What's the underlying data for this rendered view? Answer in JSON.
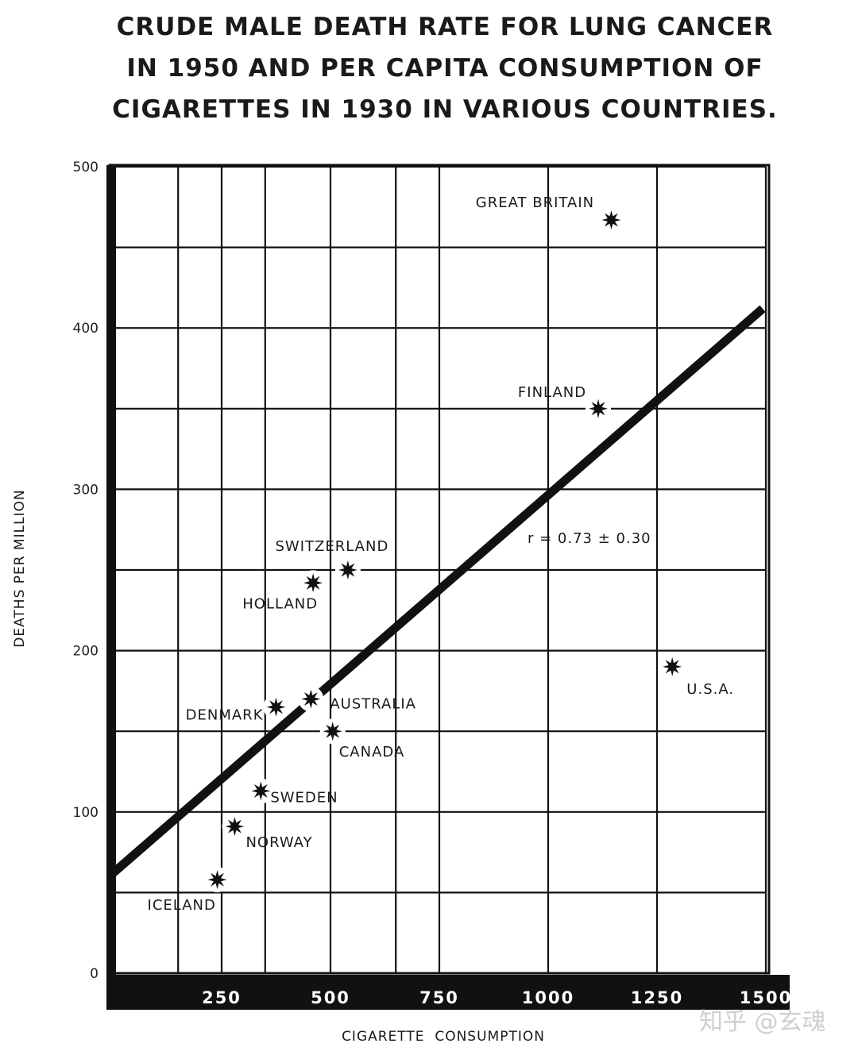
{
  "chart_data": {
    "type": "scatter",
    "title_lines": [
      "CRUDE MALE DEATH RATE FOR LUNG CANCER",
      "IN 1950 AND PER CAPITA CONSUMPTION OF",
      "CIGARETTES IN 1930 IN VARIOUS COUNTRIES."
    ],
    "xlabel": "CIGARETTE  CONSUMPTION",
    "ylabel": "DEATHS PER MILLION",
    "xlim": [
      0,
      1500
    ],
    "ylim": [
      0,
      500
    ],
    "x_ticks": [
      "250",
      "500",
      "750",
      "1000",
      "1250",
      "1500"
    ],
    "y_ticks": [
      "0",
      "100",
      "200",
      "300",
      "400",
      "500"
    ],
    "grid": true,
    "points": [
      {
        "label": "ICELAND",
        "x": 240,
        "y": 58
      },
      {
        "label": "NORWAY",
        "x": 280,
        "y": 91
      },
      {
        "label": "SWEDEN",
        "x": 340,
        "y": 113
      },
      {
        "label": "DENMARK",
        "x": 375,
        "y": 165
      },
      {
        "label": "AUSTRALIA",
        "x": 455,
        "y": 170
      },
      {
        "label": "CANADA",
        "x": 505,
        "y": 150
      },
      {
        "label": "HOLLAND",
        "x": 460,
        "y": 242
      },
      {
        "label": "SWITZERLAND",
        "x": 540,
        "y": 250
      },
      {
        "label": "FINLAND",
        "x": 1115,
        "y": 350
      },
      {
        "label": "GREAT BRITAIN",
        "x": 1145,
        "y": 467
      },
      {
        "label": "U.S.A.",
        "x": 1285,
        "y": 190
      }
    ],
    "regression_line": {
      "x": [
        0,
        1500
      ],
      "y": [
        60,
        412
      ]
    },
    "annotation": "r = 0.73 ± 0.30"
  },
  "watermark": "知乎 @玄魂"
}
